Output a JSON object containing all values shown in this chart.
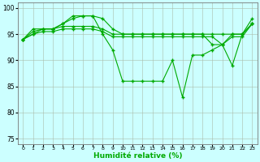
{
  "x": [
    0,
    1,
    2,
    3,
    4,
    5,
    6,
    7,
    8,
    9,
    10,
    11,
    12,
    13,
    14,
    15,
    16,
    17,
    18,
    19,
    20,
    21,
    22,
    23
  ],
  "line_spiky": [
    94,
    95,
    96,
    96,
    97,
    98.5,
    98.5,
    98.5,
    95,
    92,
    86,
    86,
    86,
    86,
    86,
    90,
    83,
    91,
    91,
    92,
    93,
    89,
    95,
    98
  ],
  "line_flat1": [
    94,
    96,
    96,
    96,
    97,
    98,
    98.5,
    98.5,
    98,
    96,
    95,
    95,
    95,
    95,
    95,
    95,
    95,
    95,
    95,
    95,
    95,
    95,
    95,
    97
  ],
  "line_flat2": [
    94,
    95.5,
    96,
    96,
    96.5,
    96.5,
    96.5,
    96.5,
    96,
    95,
    95,
    95,
    95,
    95,
    95,
    95,
    95,
    95,
    95,
    93,
    93,
    95,
    95,
    97
  ],
  "line_flat3": [
    94,
    95,
    95.5,
    95.5,
    96,
    96,
    96,
    96,
    95.5,
    94.5,
    94.5,
    94.5,
    94.5,
    94.5,
    94.5,
    94.5,
    94.5,
    94.5,
    94.5,
    94.5,
    93,
    94.5,
    94.5,
    97
  ],
  "color": "#00aa00",
  "bg_color": "#ccffff",
  "grid_color": "#aabbaa",
  "xlabel": "Humidité relative (%)",
  "ylim": [
    74,
    101
  ],
  "xlim": [
    -0.5,
    23.5
  ],
  "yticks": [
    75,
    80,
    85,
    90,
    95,
    100
  ],
  "xtick_labels": [
    "0",
    "1",
    "2",
    "3",
    "4",
    "5",
    "6",
    "7",
    "8",
    "9",
    "10",
    "11",
    "12",
    "13",
    "14",
    "15",
    "16",
    "17",
    "18",
    "19",
    "20",
    "21",
    "22",
    "23"
  ]
}
